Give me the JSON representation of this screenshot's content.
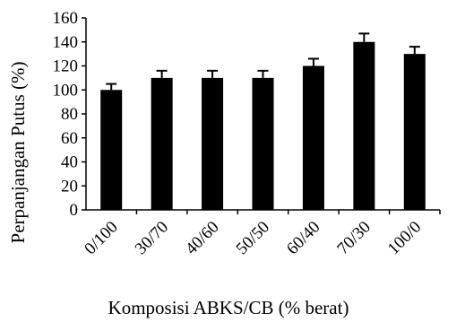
{
  "chart_data": {
    "type": "bar",
    "title": "",
    "xlabel": "Komposisi ABKS/CB (% berat)",
    "ylabel": "Perpanjangan Putus (%)",
    "categories": [
      "0/100",
      "30/70",
      "40/60",
      "50/50",
      "60/40",
      "70/30",
      "100/0"
    ],
    "values": [
      100,
      110,
      110,
      110,
      120,
      140,
      130
    ],
    "error_plus": [
      5,
      6,
      6,
      6,
      6,
      7,
      6
    ],
    "ylim": [
      0,
      160
    ],
    "yticks": [
      "0",
      "20",
      "40",
      "60",
      "80",
      "100",
      "120",
      "140",
      "160"
    ],
    "grid": false,
    "legend": "none",
    "bar_color": "#000000"
  }
}
